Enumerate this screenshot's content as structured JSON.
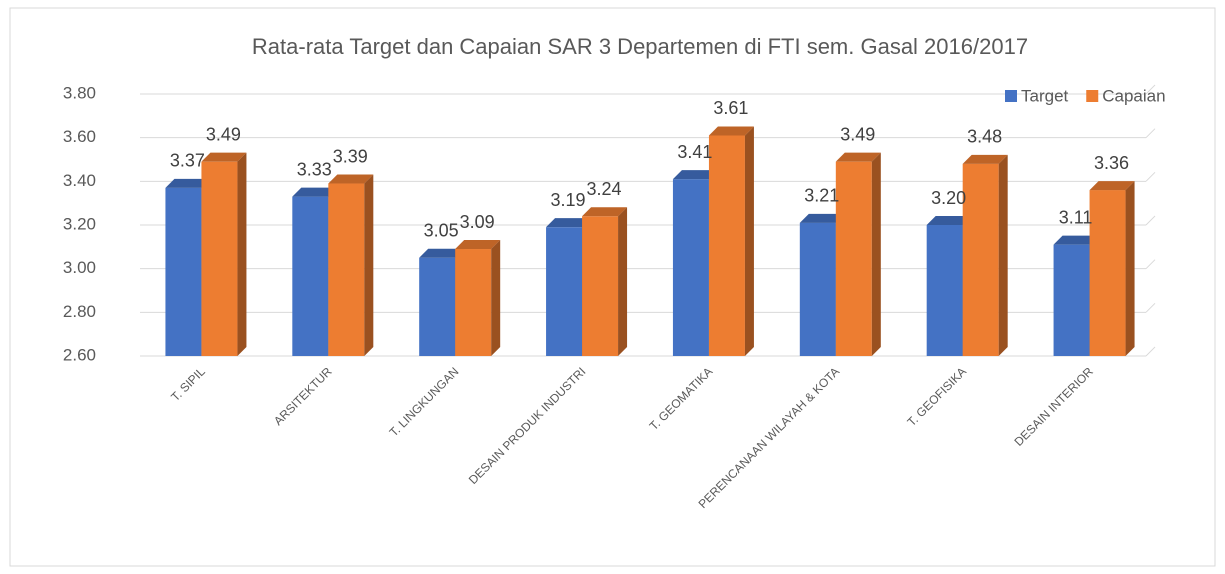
{
  "chart_data": {
    "type": "bar",
    "title": "Rata-rata Target dan Capaian SAR 3 Departemen di FTI sem. Gasal 2016/2017",
    "categories": [
      "T. SIPIL",
      "ARSITEKTUR",
      "T. LINGKUNGAN",
      "DESAIN PRODUK INDUSTRI",
      "T. GEOMATIKA",
      "PERENCANAAN WILAYAH & KOTA",
      "T. GEOFISIKA",
      "DESAIN INTERIOR"
    ],
    "series": [
      {
        "name": "Target",
        "color": "#4472c4",
        "values": [
          3.37,
          3.33,
          3.05,
          3.19,
          3.41,
          3.21,
          3.2,
          3.11
        ],
        "value_labels": [
          "3.37",
          "3.33",
          "3.05",
          "3.19",
          "3.41",
          "3.21",
          "3.20",
          "3.11"
        ]
      },
      {
        "name": "Capaian",
        "color": "#ed7d31",
        "values": [
          3.49,
          3.39,
          3.09,
          3.24,
          3.61,
          3.49,
          3.48,
          3.36
        ],
        "value_labels": [
          "3.49",
          "3.39",
          "3.09",
          "3.24",
          "3.61",
          "3.49",
          "3.48",
          "3.36"
        ]
      }
    ],
    "ylim": [
      2.6,
      3.8
    ],
    "yticks": [
      {
        "value": 2.6,
        "label": "2.60"
      },
      {
        "value": 2.8,
        "label": "2.80"
      },
      {
        "value": 3,
        "label": "3.00"
      },
      {
        "value": 3.2,
        "label": "3.20"
      },
      {
        "value": 3.4,
        "label": "3.40"
      },
      {
        "value": 3.6,
        "label": "3.60"
      },
      {
        "value": 3.8,
        "label": "3.80"
      }
    ],
    "grid": true,
    "legend": "top-right"
  }
}
